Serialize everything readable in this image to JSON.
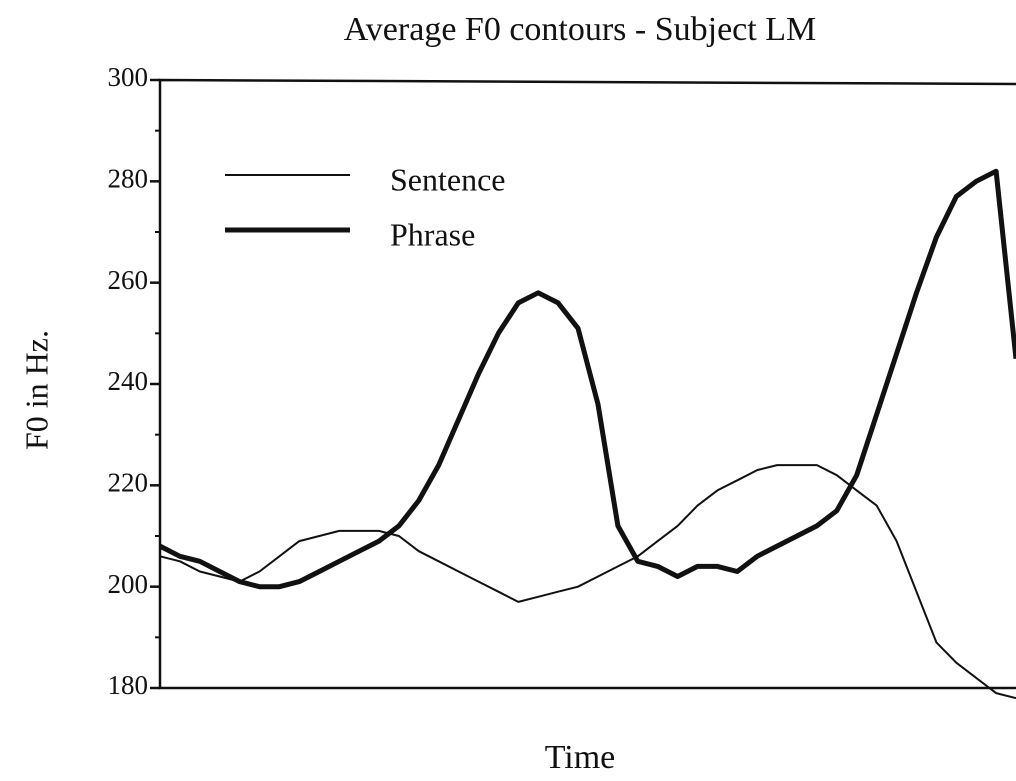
{
  "chart_data": {
    "type": "line",
    "title": "Average F0 contours - Subject LM",
    "x_label": "Time",
    "y_label": "F0 in Hz.",
    "ylim": [
      180,
      300
    ],
    "yticks": [
      180,
      200,
      220,
      240,
      260,
      280,
      300
    ],
    "minor_yticks": [
      190,
      210,
      230,
      250,
      270,
      290
    ],
    "legend": "upper left",
    "series": [
      {
        "name": "Sentence",
        "color": "#111111",
        "width": 2,
        "values": [
          206,
          205,
          203,
          202,
          201,
          203,
          206,
          209,
          210,
          211,
          211,
          211,
          210,
          207,
          205,
          203,
          201,
          199,
          197,
          198,
          199,
          200,
          202,
          204,
          206,
          209,
          212,
          216,
          219,
          221,
          223,
          224,
          224,
          224,
          222,
          219,
          216,
          209,
          199,
          189,
          185,
          182,
          179,
          178
        ]
      },
      {
        "name": "Phrase",
        "color": "#111111",
        "width": 5,
        "values": [
          208,
          206,
          205,
          203,
          201,
          200,
          200,
          201,
          203,
          205,
          207,
          209,
          212,
          217,
          224,
          233,
          242,
          250,
          256,
          258,
          256,
          251,
          236,
          212,
          205,
          204,
          202,
          204,
          204,
          203,
          206,
          208,
          210,
          212,
          215,
          222,
          234,
          246,
          258,
          269,
          277,
          280,
          282,
          245
        ]
      }
    ]
  }
}
